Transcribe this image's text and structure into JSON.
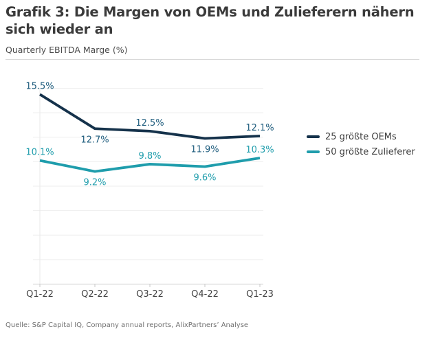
{
  "header": {
    "title": "Grafik 3: Die Margen von OEMs und Zulieferern nähern sich wieder an",
    "subtitle": "Quarterly EBITDA Marge (%)"
  },
  "chart_data": {
    "type": "line",
    "title": "Quarterly EBITDA Marge (%)",
    "categories": [
      "Q1-22",
      "Q2-22",
      "Q3-22",
      "Q4-22",
      "Q1-23"
    ],
    "unit": "%",
    "y_axis": {
      "min": 0,
      "max": 16,
      "grid_step": 2,
      "tick_labels_visible": false,
      "grid": true
    },
    "legend_position": "right",
    "series": [
      {
        "name": "25 größte OEMs",
        "values": [
          15.5,
          12.7,
          12.5,
          11.9,
          12.1
        ],
        "labels": [
          "15.5%",
          "12.7%",
          "12.5%",
          "11.9%",
          "12.1%"
        ],
        "label_placement": [
          "above",
          "below",
          "above",
          "below",
          "above"
        ],
        "line_color": "#15324b",
        "label_color": "#1e5c7d"
      },
      {
        "name": "50 größte Zulieferer",
        "values": [
          10.1,
          9.2,
          9.8,
          9.6,
          10.3
        ],
        "labels": [
          "10.1%",
          "9.2%",
          "9.8%",
          "9.6%",
          "10.3%"
        ],
        "label_placement": [
          "above",
          "below",
          "above",
          "below",
          "above"
        ],
        "line_color": "#1f9dac",
        "label_color": "#1f9dac"
      }
    ],
    "colors": {
      "gridline": "#eeeeee",
      "axis_line": "#c9c9c9",
      "y_axis_line": "#e9e9e9",
      "x_tick_label": "#3f3f3f"
    }
  },
  "source": "Quelle: S&P Capital IQ, Company annual reports, AlixPartners’ Analyse"
}
